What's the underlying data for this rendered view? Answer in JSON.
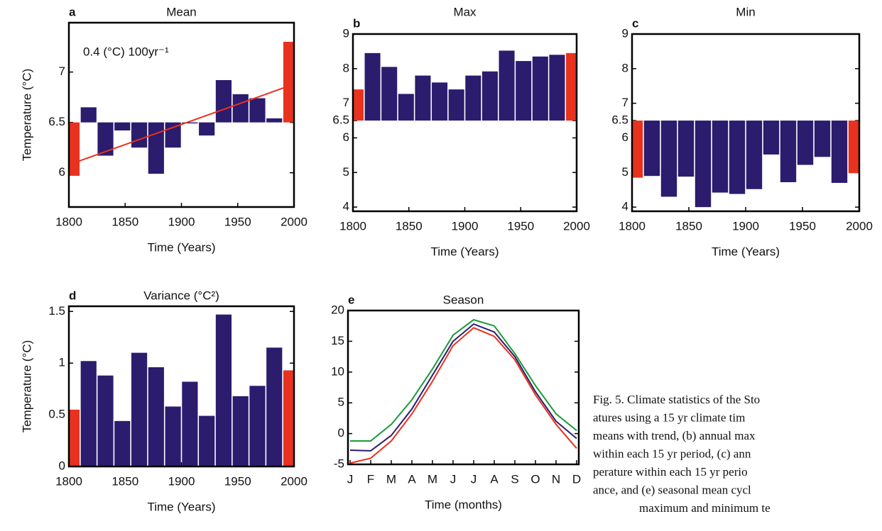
{
  "charts": [
    {
      "type": "bar",
      "letter": "a",
      "title": "Mean",
      "ylabel": "Temperature (°C)",
      "xlabel": "Time (Years)",
      "annotation": "0.4 (°C) 100yr⁻¹",
      "x": [
        1802.5,
        1817.5,
        1832.5,
        1847.5,
        1862.5,
        1877.5,
        1892.5,
        1907.5,
        1922.5,
        1937.5,
        1952.5,
        1967.5,
        1982.5,
        1997.5
      ],
      "values": [
        5.97,
        6.65,
        6.17,
        6.42,
        6.25,
        5.99,
        6.25,
        6.49,
        6.37,
        6.92,
        6.78,
        6.74,
        6.54,
        7.3
      ],
      "colors": [
        "#e8321e",
        "#2b1c6e",
        "#2b1c6e",
        "#2b1c6e",
        "#2b1c6e",
        "#2b1c6e",
        "#2b1c6e",
        "#2b1c6e",
        "#2b1c6e",
        "#2b1c6e",
        "#2b1c6e",
        "#2b1c6e",
        "#2b1c6e",
        "#e8321e"
      ],
      "baseline": 6.5,
      "trend": {
        "x": [
          1800,
          2000
        ],
        "values": [
          6.08,
          6.88
        ],
        "color": "#e8321e"
      },
      "xlim": [
        1800,
        2000
      ],
      "xticks": [
        1800,
        1850,
        1900,
        1950,
        2000
      ],
      "ylim": [
        5.66,
        7.49
      ],
      "yticks": [
        6,
        6.5,
        7
      ]
    },
    {
      "type": "bar",
      "letter": "b",
      "title": "Max",
      "xlabel": "Time (Years)",
      "x": [
        1802.5,
        1817.5,
        1832.5,
        1847.5,
        1862.5,
        1877.5,
        1892.5,
        1907.5,
        1922.5,
        1937.5,
        1952.5,
        1967.5,
        1982.5,
        1997.5
      ],
      "values": [
        7.4,
        8.45,
        8.05,
        7.27,
        7.8,
        7.6,
        7.4,
        7.8,
        7.92,
        8.52,
        8.22,
        8.35,
        8.4,
        8.45
      ],
      "colors": [
        "#e8321e",
        "#2b1c6e",
        "#2b1c6e",
        "#2b1c6e",
        "#2b1c6e",
        "#2b1c6e",
        "#2b1c6e",
        "#2b1c6e",
        "#2b1c6e",
        "#2b1c6e",
        "#2b1c6e",
        "#2b1c6e",
        "#2b1c6e",
        "#e8321e"
      ],
      "baseline": 6.5,
      "xlim": [
        1800,
        2000
      ],
      "xticks": [
        1800,
        1850,
        1900,
        1950,
        2000
      ],
      "ylim": [
        3.88,
        9
      ],
      "yticks": [
        4,
        5,
        6,
        6.5,
        7,
        8,
        9
      ]
    },
    {
      "type": "bar",
      "letter": "c",
      "title": "Min",
      "xlabel": "Time (Years)",
      "x": [
        1802.5,
        1817.5,
        1832.5,
        1847.5,
        1862.5,
        1877.5,
        1892.5,
        1907.5,
        1922.5,
        1937.5,
        1952.5,
        1967.5,
        1982.5,
        1997.5
      ],
      "values": [
        4.85,
        4.9,
        4.3,
        4.88,
        4.0,
        4.42,
        4.38,
        4.52,
        5.52,
        4.72,
        5.22,
        5.45,
        4.7,
        4.98
      ],
      "colors": [
        "#e8321e",
        "#2b1c6e",
        "#2b1c6e",
        "#2b1c6e",
        "#2b1c6e",
        "#2b1c6e",
        "#2b1c6e",
        "#2b1c6e",
        "#2b1c6e",
        "#2b1c6e",
        "#2b1c6e",
        "#2b1c6e",
        "#2b1c6e",
        "#e8321e"
      ],
      "baseline": 6.5,
      "xlim": [
        1800,
        2000
      ],
      "xticks": [
        1800,
        1850,
        1900,
        1950,
        2000
      ],
      "ylim": [
        3.88,
        9
      ],
      "yticks": [
        4,
        5,
        6,
        6.5,
        7,
        8,
        9
      ]
    },
    {
      "type": "bar",
      "letter": "d",
      "title": "Variance (°C²)",
      "ylabel": "Temperature (°C)",
      "xlabel": "Time (Years)",
      "x": [
        1802.5,
        1817.5,
        1832.5,
        1847.5,
        1862.5,
        1877.5,
        1892.5,
        1907.5,
        1922.5,
        1937.5,
        1952.5,
        1967.5,
        1982.5,
        1997.5
      ],
      "values": [
        0.55,
        1.02,
        0.88,
        0.44,
        1.1,
        0.96,
        0.58,
        0.82,
        0.49,
        1.47,
        0.68,
        0.78,
        1.15,
        0.93
      ],
      "colors": [
        "#e8321e",
        "#2b1c6e",
        "#2b1c6e",
        "#2b1c6e",
        "#2b1c6e",
        "#2b1c6e",
        "#2b1c6e",
        "#2b1c6e",
        "#2b1c6e",
        "#2b1c6e",
        "#2b1c6e",
        "#2b1c6e",
        "#2b1c6e",
        "#e8321e"
      ],
      "xlim": [
        1800,
        2000
      ],
      "xticks": [
        1800,
        1850,
        1900,
        1950,
        2000
      ],
      "ylim": [
        0,
        1.55
      ],
      "yticks": [
        0,
        0.5,
        1,
        1.5
      ]
    },
    {
      "type": "line",
      "letter": "e",
      "title": "Season",
      "xlabel": "Time (months)",
      "categories": [
        "J",
        "F",
        "M",
        "A",
        "M",
        "J",
        "J",
        "A",
        "S",
        "O",
        "N",
        "D"
      ],
      "series": [
        {
          "color": "#1a9a3a",
          "values": [
            -1.2,
            -1.2,
            1.5,
            5.5,
            10.5,
            16,
            18.5,
            17.5,
            13,
            7.8,
            3.2,
            0.5
          ]
        },
        {
          "color": "#2b1c6e",
          "values": [
            -2.7,
            -2.8,
            -0.3,
            4,
            9.5,
            15,
            17.8,
            16.5,
            12.5,
            6.8,
            2,
            -0.8
          ]
        },
        {
          "color": "#e8321e",
          "values": [
            -4.8,
            -4,
            -1.2,
            3.2,
            8.5,
            14.3,
            17.2,
            15.8,
            12,
            6.3,
            1.5,
            -2.4
          ]
        }
      ],
      "ylim": [
        -5,
        20
      ],
      "yticks": [
        -5,
        0,
        5,
        10,
        15,
        20
      ]
    }
  ],
  "caption": {
    "lines": [
      "Fig. 5. Climate statistics of the Sto",
      "atures using a 15 yr climate tim",
      "means with trend, (b) annual max",
      "within each 15 yr period, (c) ann",
      "perature within each 15 yr perio",
      "ance, and (e) seasonal mean cycl",
      "maximum and minimum te"
    ]
  }
}
